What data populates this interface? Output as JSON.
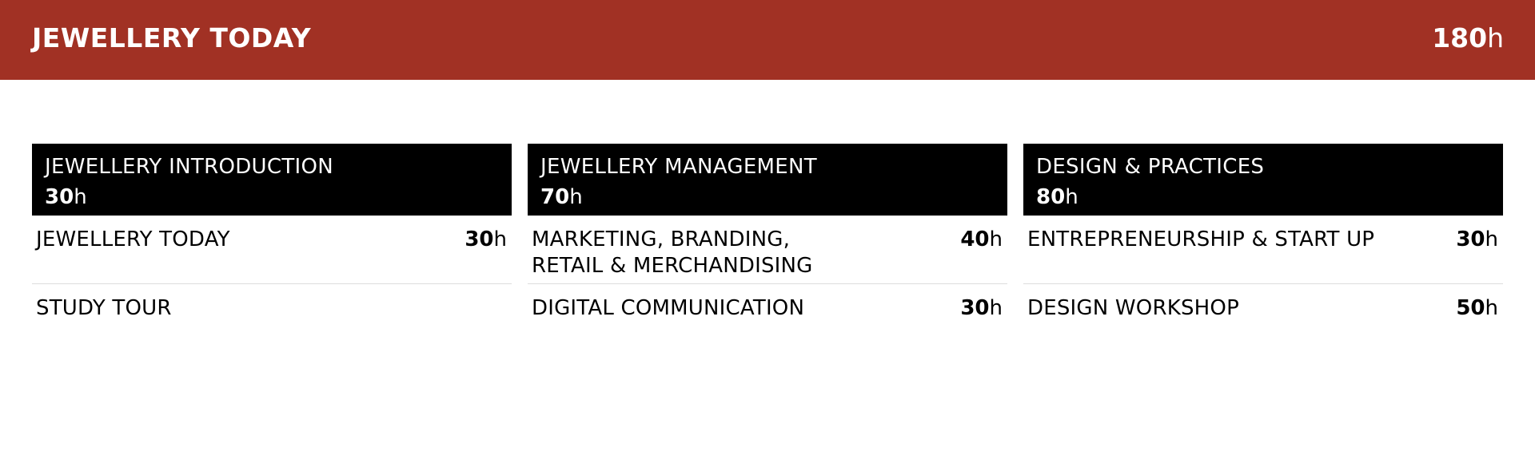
{
  "banner": {
    "title": "JEWELLERY TODAY",
    "hours_num": "180",
    "hours_unit": "h",
    "background": "#a13124"
  },
  "columns": [
    {
      "title": "JEWELLERY INTRODUCTION",
      "hours_num": "30",
      "hours_unit": "h",
      "rows": [
        {
          "label": "JEWELLERY TODAY",
          "hours_num": "30",
          "hours_unit": "h"
        },
        {
          "label": "STUDY TOUR",
          "hours_num": "",
          "hours_unit": ""
        }
      ]
    },
    {
      "title": "JEWELLERY MANAGEMENT",
      "hours_num": "70",
      "hours_unit": "h",
      "rows": [
        {
          "label": "MARKETING, BRANDING,",
          "label2": "RETAIL & MERCHANDISING",
          "hours_num": "40",
          "hours_unit": "h"
        },
        {
          "label": "DIGITAL COMMUNICATION",
          "hours_num": "30",
          "hours_unit": "h"
        }
      ]
    },
    {
      "title": "DESIGN & PRACTICES",
      "hours_num": "80",
      "hours_unit": "h",
      "rows": [
        {
          "label": "ENTREPRENEURSHIP & START UP",
          "hours_num": "30",
          "hours_unit": "h"
        },
        {
          "label": "DESIGN WORKSHOP",
          "hours_num": "50",
          "hours_unit": "h"
        }
      ]
    }
  ]
}
